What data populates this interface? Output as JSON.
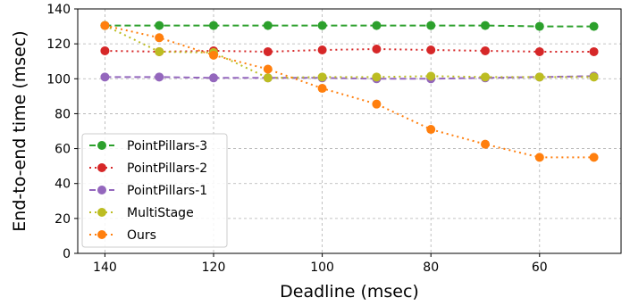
{
  "chart_data": {
    "type": "line",
    "xlabel": "Deadline (msec)",
    "ylabel": "End-to-end time (msec)",
    "xlim": [
      145,
      45
    ],
    "ylim": [
      0,
      140
    ],
    "x_ticks": [
      140,
      120,
      100,
      80,
      60
    ],
    "y_ticks": [
      0,
      20,
      40,
      60,
      80,
      100,
      120,
      140
    ],
    "grid": true,
    "legend_position": "lower-left",
    "x": [
      140,
      130,
      120,
      110,
      100,
      90,
      80,
      70,
      60,
      50
    ],
    "series": [
      {
        "name": "PointPillars-3",
        "color": "#2ca02c",
        "linestyle": "dashed",
        "values": [
          130.5,
          130.5,
          130.5,
          130.5,
          130.5,
          130.5,
          130.5,
          130.5,
          130,
          130
        ]
      },
      {
        "name": "PointPillars-2",
        "color": "#d62728",
        "linestyle": "dotted",
        "values": [
          116,
          115.5,
          116,
          115.5,
          116.5,
          117,
          116.5,
          116,
          115.5,
          115.5
        ]
      },
      {
        "name": "PointPillars-1",
        "color": "#9467bd",
        "linestyle": "dashed",
        "values": [
          101,
          101,
          100.5,
          100.5,
          100.5,
          100,
          100,
          100.5,
          101,
          101.5
        ]
      },
      {
        "name": "MultiStage",
        "color": "#bcbd22",
        "linestyle": "dotted",
        "values": [
          130.5,
          115.5,
          115,
          100.5,
          101,
          101,
          101.5,
          101,
          101,
          101
        ]
      },
      {
        "name": "Ours",
        "color": "#ff7f0e",
        "linestyle": "dotted",
        "values": [
          130.5,
          123.5,
          113.5,
          105.5,
          94.5,
          85.5,
          71,
          62.5,
          55,
          55
        ]
      }
    ]
  }
}
